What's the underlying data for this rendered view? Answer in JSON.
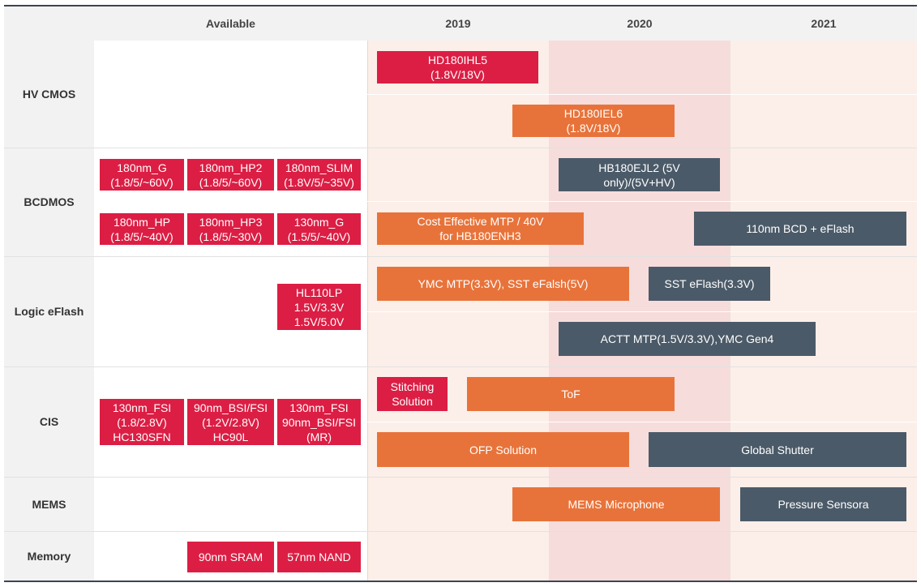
{
  "header": {
    "available": "Available",
    "years": [
      "2019",
      "2020",
      "2021"
    ]
  },
  "categories": [
    "HV CMOS",
    "BCDMOS",
    "Logic eFlash",
    "CIS",
    "MEMS",
    "Memory"
  ],
  "available_items": {
    "bcd_1": "180nm_G\n(1.8/5/~60V)",
    "bcd_2": "180nm_HP2\n(1.8/5/~60V)",
    "bcd_3": "180nm_SLIM\n(1.8V/5/~35V)",
    "bcd_4": "180nm_HP\n(1.8/5/~40V)",
    "bcd_5": "180nm_HP3\n(1.8/5/~30V)",
    "bcd_6": "130nm_G\n(1.5/5/~40V)",
    "logic_1": "HL110LP\n1.5V/3.3V\n1.5V/5.0V",
    "cis_1": "130nm_FSI\n(1.8/2.8V)\nHC130SFN",
    "cis_2": "90nm_BSI/FSI\n(1.2V/2.8V)\nHC90L",
    "cis_3": "130nm_FSI\n90nm_BSI/FSI\n(MR)",
    "mem_1": "90nm SRAM",
    "mem_2": "57nm NAND"
  },
  "roadmap_items": {
    "hv_1": "HD180IHL5\n(1.8V/18V)",
    "hv_2": "HD180IEL6\n(1.8V/18V)",
    "bcd_r1": "HB180EJL2 (5V\nonly)/(5V+HV)",
    "bcd_r2": "Cost Effective MTP / 40V\nfor HB180ENH3",
    "bcd_r3": "110nm BCD + eFlash",
    "logic_r1": "YMC MTP(3.3V), SST eFalsh(5V)",
    "logic_r2": "SST eFlash(3.3V)",
    "logic_r3": "ACTT MTP(1.5V/3.3V),YMC Gen4",
    "cis_r1": "Stitching\nSolution",
    "cis_r2": "ToF",
    "cis_r3": "OFP Solution",
    "cis_r4": "Global Shutter",
    "mems_r1": "MEMS Microphone",
    "mems_r2": "Pressure Sensora"
  },
  "colors": {
    "available_red": "#dc1e44",
    "roadmap_orange": "#e8733a",
    "roadmap_slate": "#4b5a68",
    "timeline_bg": "#fcefe9",
    "highlight_2020": "#f7dcdc"
  }
}
